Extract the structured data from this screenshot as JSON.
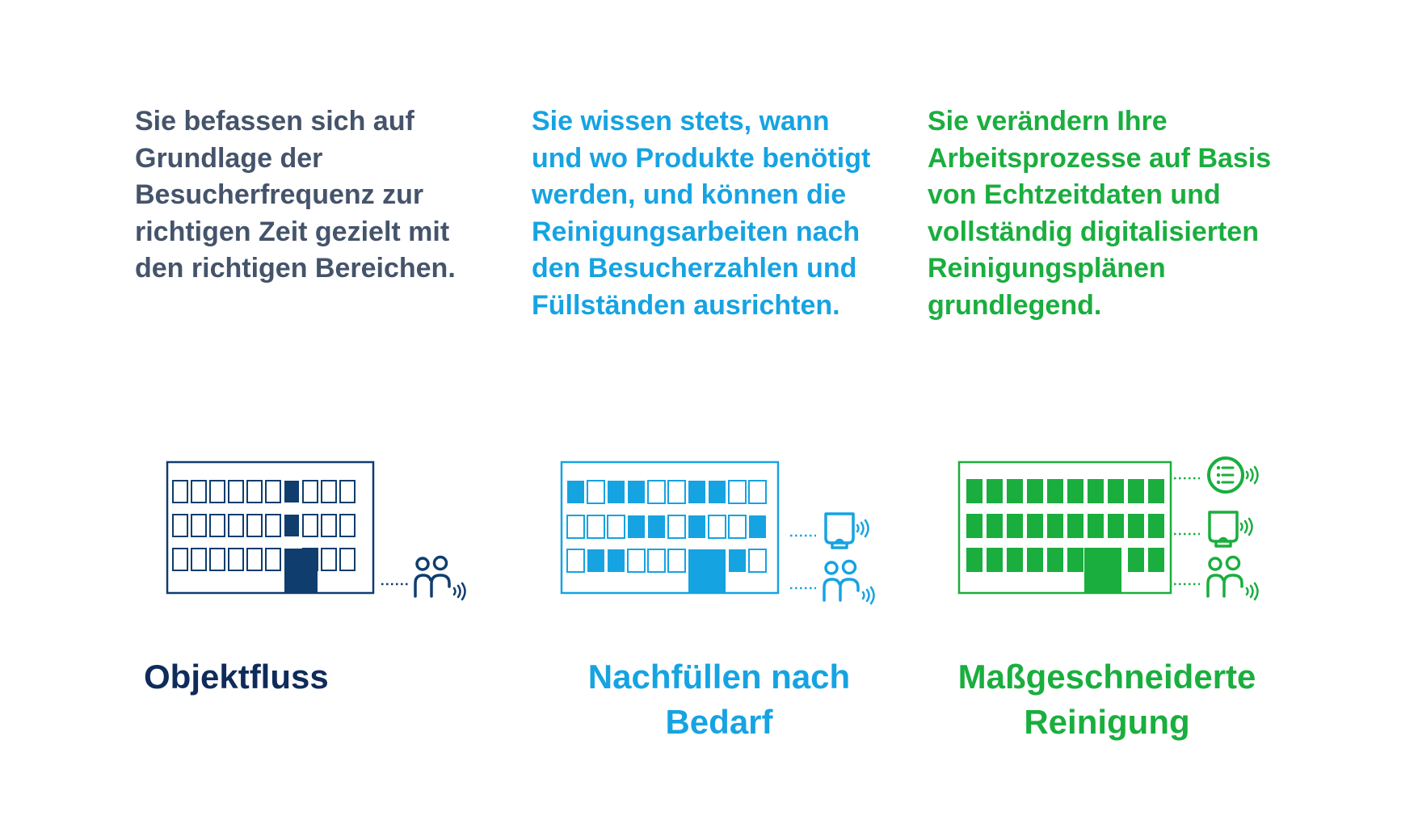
{
  "columns": [
    {
      "description_lines": [
        "Sie befassen sich auf",
        "Grundlage der",
        "Besucherfrequenz zur",
        "richtigen Zeit gezielt mit",
        "den richtigen Bereichen."
      ],
      "title_lines": [
        "Objektfluss"
      ],
      "color": "#45546b",
      "title_color": "#0f2b5b"
    },
    {
      "description_lines": [
        "Sie wissen stets, wann",
        "und wo Produkte benötigt",
        "werden, und können die",
        "Reinigungsarbeiten nach",
        "den Besucherzahlen und",
        "Füllständen ausrichten."
      ],
      "title_lines": [
        "Nachfüllen nach",
        "Bedarf"
      ],
      "color": "#16a3e2"
    },
    {
      "description_lines": [
        "Sie verändern Ihre",
        "Arbeitsprozesse auf Basis",
        "von Echtzeitdaten und",
        "vollständig digitalisierten",
        "Reinigungsplänen",
        "grundlegend."
      ],
      "title_lines": [
        "Maßgeschneiderte",
        "Reinigung"
      ],
      "color": "#1aae3e"
    }
  ],
  "illustrations": [
    {
      "name": "building-navy-icon",
      "connected_icons": [
        "people-sensor-icon"
      ]
    },
    {
      "name": "building-blue-icon",
      "connected_icons": [
        "dispenser-sensor-icon",
        "people-sensor-icon"
      ]
    },
    {
      "name": "building-green-icon",
      "connected_icons": [
        "checklist-sensor-icon",
        "dispenser-sensor-icon",
        "people-sensor-icon"
      ]
    }
  ]
}
